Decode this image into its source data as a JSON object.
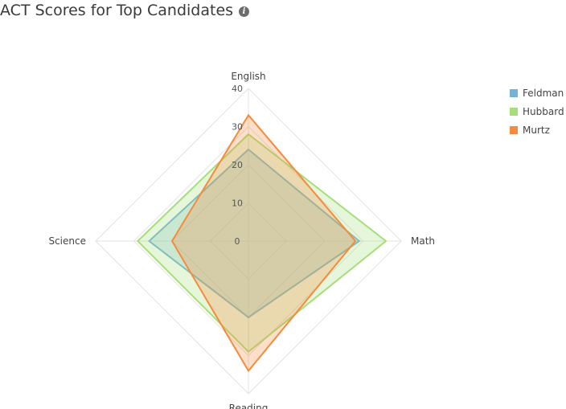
{
  "header": {
    "title": "ACT Scores for Top Candidates",
    "info_icon": "info-icon",
    "info_icon_glyph": "i"
  },
  "chart_data": {
    "type": "radar",
    "title": "ACT Scores for Top Candidates",
    "axes": [
      "English",
      "Math",
      "Reading",
      "Science"
    ],
    "rlim": [
      0,
      40
    ],
    "ticks": [
      0,
      10,
      20,
      30,
      40
    ],
    "grid": true,
    "legend_position": "right",
    "series": [
      {
        "name": "Feldman",
        "values": [
          24,
          29,
          20,
          26
        ],
        "color": "#75b2d6"
      },
      {
        "name": "Hubbard",
        "values": [
          28,
          36,
          29,
          29
        ],
        "color": "#a6de7a"
      },
      {
        "name": "Murtz",
        "values": [
          33,
          28,
          34,
          20
        ],
        "color": "#f58b3c"
      }
    ]
  }
}
